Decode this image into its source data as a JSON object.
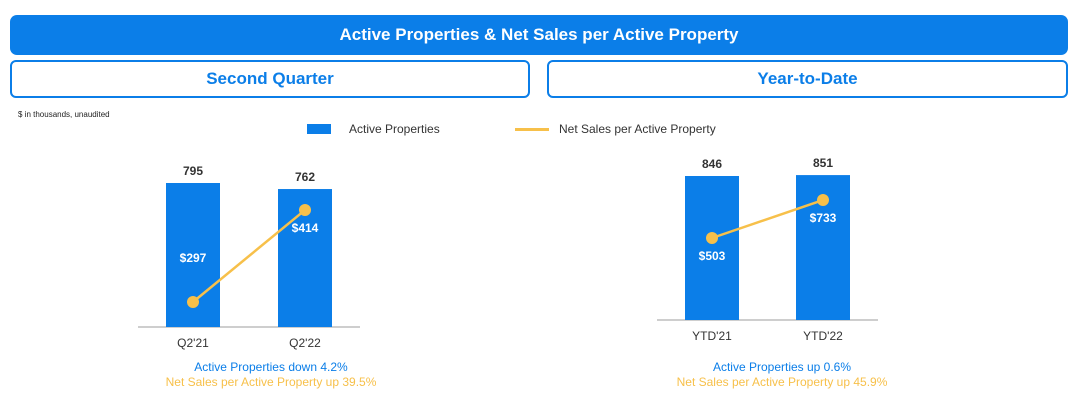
{
  "title": "Active Properties & Net Sales per Active Property",
  "sections": {
    "left": "Second Quarter",
    "right": "Year-to-Date"
  },
  "footnote": "$ in thousands, unaudited",
  "legend": {
    "bar": "Active Properties",
    "line": "Net Sales per Active Property"
  },
  "colors": {
    "bar": "#0b7ee8",
    "line": "#f7c04a",
    "axis": "#9e9e9e"
  },
  "chart_data": [
    {
      "type": "bar",
      "categories": [
        "Q2'21",
        "Q2'22"
      ],
      "series": [
        {
          "name": "Active Properties",
          "values": [
            795,
            762
          ],
          "labels": [
            "795",
            "762"
          ]
        },
        {
          "name": "Net Sales per Active Property",
          "type": "line",
          "values": [
            297,
            414
          ],
          "labels": [
            "$297",
            "$414"
          ]
        }
      ],
      "captions": [
        "Active Properties down 4.2%",
        "Net Sales per Active Property up 39.5%"
      ]
    },
    {
      "type": "bar",
      "categories": [
        "YTD'21",
        "YTD'22"
      ],
      "series": [
        {
          "name": "Active Properties",
          "values": [
            846,
            851
          ],
          "labels": [
            "846",
            "851"
          ]
        },
        {
          "name": "Net Sales per Active Property",
          "type": "line",
          "values": [
            503,
            733
          ],
          "labels": [
            "$503",
            "$733"
          ]
        }
      ],
      "captions": [
        "Active Properties up 0.6%",
        "Net Sales per Active Property up 45.9%"
      ]
    }
  ]
}
